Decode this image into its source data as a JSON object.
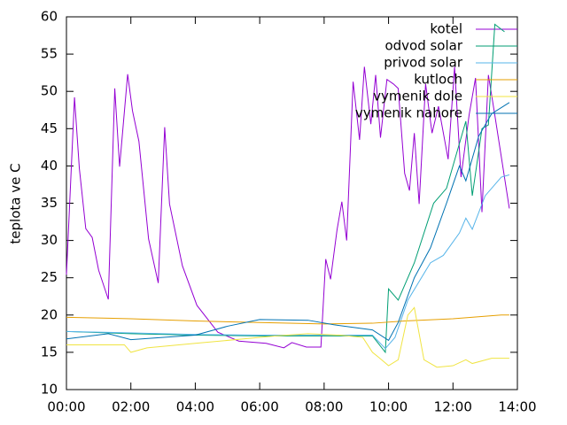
{
  "chart_data": {
    "type": "line",
    "ylabel": "teplota ve C",
    "xlim": [
      0,
      14
    ],
    "xticks": [
      {
        "value": 0,
        "label": "00:00"
      },
      {
        "value": 2,
        "label": "02:00"
      },
      {
        "value": 4,
        "label": "04:00"
      },
      {
        "value": 6,
        "label": "06:00"
      },
      {
        "value": 8,
        "label": "08:00"
      },
      {
        "value": 10,
        "label": "10:00"
      },
      {
        "value": 12,
        "label": "12:00"
      },
      {
        "value": 14,
        "label": "14:00"
      }
    ],
    "ylim": [
      10,
      60
    ],
    "yticks": [
      10,
      15,
      20,
      25,
      30,
      35,
      40,
      45,
      50,
      55,
      60
    ],
    "legend": "top-right",
    "series": [
      {
        "name": "kotel",
        "color": "#9400d3",
        "x": [
          0,
          0.25,
          0.4,
          0.6,
          0.8,
          1.0,
          1.3,
          1.5,
          1.65,
          1.9,
          2.05,
          2.25,
          2.55,
          2.85,
          3.05,
          3.2,
          3.6,
          4.05,
          4.7,
          5.35,
          6.2,
          6.75,
          7.0,
          7.45,
          7.9,
          8.05,
          8.2,
          8.4,
          8.55,
          8.7,
          8.9,
          9.1,
          9.25,
          9.45,
          9.6,
          9.75,
          9.95,
          10.15,
          10.3,
          10.5,
          10.65,
          10.8,
          10.95,
          11.15,
          11.35,
          11.55,
          11.85,
          12.05,
          12.25,
          12.5,
          12.7,
          12.9,
          13.1,
          13.3,
          13.75
        ],
        "values": [
          25.4,
          49.2,
          39.7,
          31.6,
          30.4,
          26,
          22.1,
          50.4,
          39.9,
          52.3,
          47.4,
          43.3,
          30.2,
          24.3,
          45.2,
          34.9,
          26.6,
          21.3,
          17.7,
          16.5,
          16.2,
          15.6,
          16.3,
          15.7,
          15.7,
          27.5,
          24.8,
          31.4,
          35.2,
          30,
          51.3,
          43.5,
          53.3,
          45.6,
          52.2,
          43.8,
          51.6,
          51,
          50.4,
          39,
          36.7,
          44.4,
          34.9,
          51,
          44.4,
          48,
          40.9,
          53.3,
          38.5,
          46.8,
          51.8,
          33.8,
          52.2,
          46.8,
          34.3
        ]
      },
      {
        "name": "odvod solar",
        "color": "#009e73",
        "x": [
          0,
          2,
          4,
          6,
          8,
          9.5,
          9.9,
          10.0,
          10.3,
          10.8,
          11.4,
          11.8,
          12.2,
          12.4,
          12.6,
          12.9,
          13.1,
          13.3,
          13.6
        ],
        "values": [
          17.8,
          17.5,
          17.3,
          17.2,
          17.2,
          17.2,
          15,
          23.5,
          22,
          27,
          35,
          37,
          43,
          46,
          36,
          45,
          45.5,
          59,
          58
        ]
      },
      {
        "name": "privod solar",
        "color": "#56b4e9",
        "x": [
          0,
          2,
          4,
          6,
          8,
          9.5,
          9.9,
          10.2,
          10.6,
          11.3,
          11.7,
          12.2,
          12.4,
          12.6,
          13.0,
          13.5,
          13.75
        ],
        "values": [
          17.8,
          17.6,
          17.4,
          17.3,
          17.3,
          17.3,
          15.5,
          17,
          22,
          27,
          28,
          31,
          33,
          31.5,
          36,
          38.5,
          38.8
        ]
      },
      {
        "name": "kutloch",
        "color": "#e69f00",
        "x": [
          0,
          2,
          4,
          6,
          8,
          9.5,
          10.5,
          12,
          13.5,
          13.75
        ],
        "values": [
          19.7,
          19.5,
          19.2,
          19,
          18.8,
          18.9,
          19.2,
          19.5,
          20,
          20
        ]
      },
      {
        "name": "vymenik dole",
        "color": "#f0e442",
        "x": [
          0,
          1.8,
          2.0,
          2.5,
          4,
          5.5,
          6.5,
          7.5,
          8.5,
          9.2,
          9.5,
          9.7,
          10.0,
          10.3,
          10.6,
          10.8,
          11.1,
          11.5,
          12.0,
          12.4,
          12.6,
          13.2,
          13.75
        ],
        "values": [
          16,
          16,
          15,
          15.6,
          16.2,
          16.8,
          17.2,
          17.5,
          17.3,
          17,
          15,
          14.3,
          13.2,
          14,
          20,
          21,
          14,
          13,
          13.2,
          14,
          13.5,
          14.2,
          14.2
        ]
      },
      {
        "name": "vymenik nahore",
        "color": "#0072b2",
        "x": [
          0,
          1.3,
          2.0,
          4,
          5,
          6,
          7.5,
          8.3,
          9.5,
          10.0,
          10.3,
          10.8,
          11.3,
          11.8,
          12.2,
          12.4,
          12.8,
          13.2,
          13.75
        ],
        "values": [
          16.8,
          17.5,
          16.7,
          17.3,
          18.5,
          19.4,
          19.3,
          18.7,
          18,
          16.6,
          19,
          25,
          29,
          35,
          40,
          38,
          44,
          47,
          48.5
        ]
      }
    ]
  }
}
